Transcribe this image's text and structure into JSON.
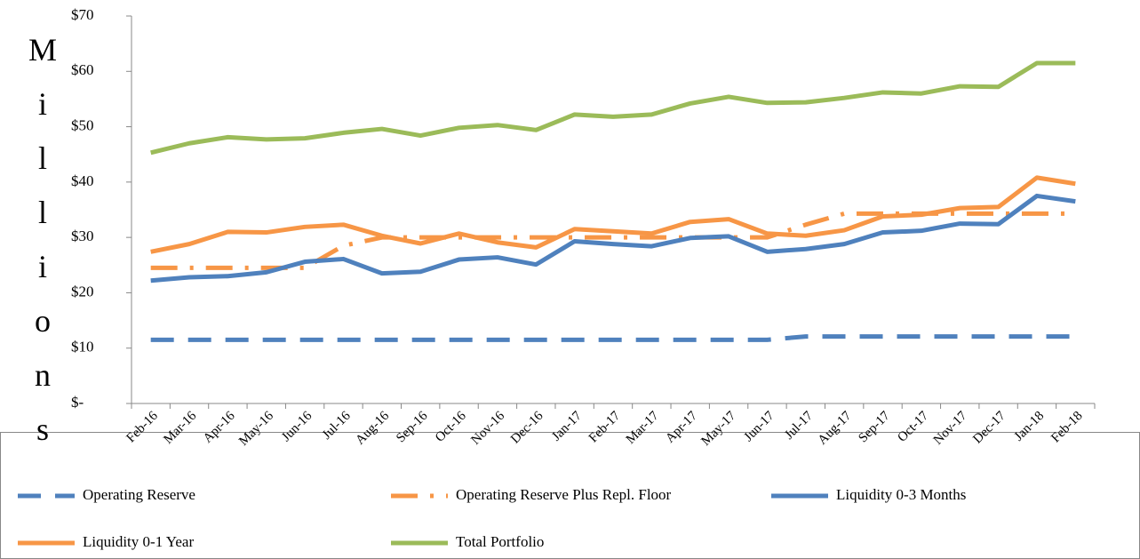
{
  "chart_data": {
    "type": "line",
    "y_label": "Millions",
    "categories": [
      "Feb-16",
      "Mar-16",
      "Apr-16",
      "May-16",
      "Jun-16",
      "Jul-16",
      "Aug-16",
      "Sep-16",
      "Oct-16",
      "Nov-16",
      "Dec-16",
      "Jan-17",
      "Feb-17",
      "Mar-17",
      "Apr-17",
      "May-17",
      "Jun-17",
      "Jul-17",
      "Aug-17",
      "Sep-17",
      "Oct-17",
      "Nov-17",
      "Dec-17",
      "Jan-18",
      "Feb-18"
    ],
    "series": [
      {
        "name": "Operating Reserve",
        "color": "#4f81bd",
        "style": "dashed",
        "values": [
          11.5,
          11.5,
          11.5,
          11.5,
          11.5,
          11.5,
          11.5,
          11.5,
          11.5,
          11.5,
          11.5,
          11.5,
          11.5,
          11.5,
          11.5,
          11.5,
          11.5,
          12.1,
          12.1,
          12.1,
          12.1,
          12.1,
          12.1,
          12.1,
          12.1
        ]
      },
      {
        "name": "Operating Reserve Plus Repl. Floor",
        "color": "#f79646",
        "style": "dashdot",
        "values": [
          24.5,
          24.5,
          24.5,
          24.5,
          24.5,
          28.5,
          30,
          30,
          30,
          30,
          30,
          30,
          30,
          30,
          30,
          30,
          30,
          32.3,
          34.3,
          34.3,
          34.3,
          34.3,
          34.3,
          34.3,
          34.3
        ]
      },
      {
        "name": "Liquidity 0-3 Months",
        "color": "#4f81bd",
        "style": "solid",
        "values": [
          22.2,
          22.8,
          23,
          23.7,
          25.6,
          26.1,
          23.5,
          23.8,
          26,
          26.4,
          25.1,
          29.3,
          28.8,
          28.4,
          29.9,
          30.2,
          27.4,
          27.9,
          28.8,
          30.9,
          31.2,
          32.5,
          32.4,
          37.5,
          36.5
        ]
      },
      {
        "name": "Liquidity 0-1 Year",
        "color": "#f79646",
        "style": "solid",
        "values": [
          27.4,
          28.8,
          31,
          30.9,
          31.9,
          32.3,
          30.3,
          28.9,
          30.7,
          29.1,
          28.2,
          31.5,
          31.1,
          30.7,
          32.8,
          33.3,
          30.7,
          30.3,
          31.3,
          33.8,
          34.1,
          35.3,
          35.5,
          40.8,
          39.7
        ]
      },
      {
        "name": "Total Portfolio",
        "color": "#9bbb59",
        "style": "solid",
        "values": [
          45.3,
          47,
          48.1,
          47.7,
          47.9,
          48.9,
          49.6,
          48.4,
          49.8,
          50.3,
          49.4,
          52.2,
          51.8,
          52.2,
          54.2,
          55.4,
          54.3,
          54.4,
          55.2,
          56.2,
          56,
          57.3,
          57.2,
          61.5,
          61.5
        ]
      }
    ],
    "ylim": [
      0,
      70
    ],
    "yticks": [
      {
        "value": 0,
        "label": "$-"
      },
      {
        "value": 10,
        "label": "$10"
      },
      {
        "value": 20,
        "label": "$20"
      },
      {
        "value": 30,
        "label": "$30"
      },
      {
        "value": 40,
        "label": "$40"
      },
      {
        "value": 50,
        "label": "$50"
      },
      {
        "value": 60,
        "label": "$60"
      },
      {
        "value": 70,
        "label": "$70"
      }
    ],
    "grid": false,
    "legend": "bottom"
  }
}
